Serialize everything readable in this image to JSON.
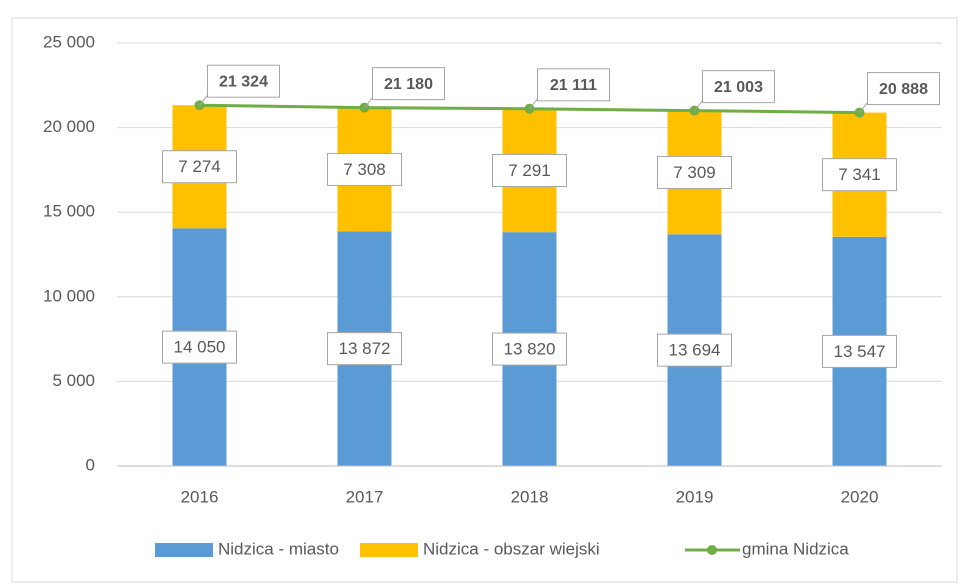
{
  "chart_data": {
    "type": "bar",
    "stacked": true,
    "categories": [
      "2016",
      "2017",
      "2018",
      "2019",
      "2020"
    ],
    "series": [
      {
        "name": "Nidzica - miasto",
        "color": "#5b9bd5",
        "values": [
          14050,
          13872,
          13820,
          13694,
          13547
        ],
        "value_labels": [
          "14 050",
          "13 872",
          "13 820",
          "13 694",
          "13 547"
        ]
      },
      {
        "name": "Nidzica - obszar wiejski",
        "color": "#ffc000",
        "values": [
          7274,
          7308,
          7291,
          7309,
          7341
        ],
        "value_labels": [
          "7 274",
          "7 308",
          "7 291",
          "7 309",
          "7 341"
        ]
      },
      {
        "name": "gmina Nidzica",
        "color": "#70ad47",
        "kind": "line",
        "values": [
          21324,
          21180,
          21111,
          21003,
          20888
        ],
        "value_labels": [
          "21 324",
          "21 180",
          "21 111",
          "21 003",
          "20 888"
        ]
      }
    ],
    "ylim": [
      0,
      25000
    ],
    "yticks": [
      0,
      {
        "value": 5000,
        "label": "5 000"
      },
      {
        "value": 10000,
        "label": "10 000"
      },
      {
        "value": 15000,
        "label": "15 000"
      },
      {
        "value": 20000,
        "label": "20 000"
      },
      {
        "value": 25000,
        "label": "25 000"
      }
    ],
    "grid": true,
    "legend": "bottom"
  }
}
